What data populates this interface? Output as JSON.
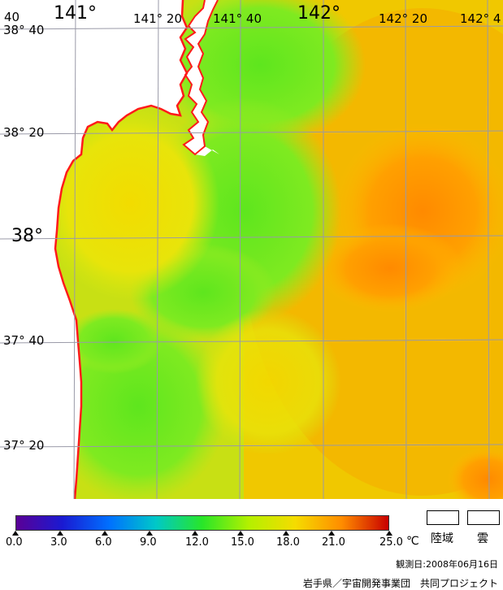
{
  "map": {
    "lon_labels": [
      {
        "text": "141°",
        "key": "lon1"
      },
      {
        "text": "141° 20",
        "key": "lon2"
      },
      {
        "text": "141° 40",
        "key": "lon3"
      },
      {
        "text": "142°",
        "key": "lon4"
      },
      {
        "text": "142° 20",
        "key": "lon5"
      },
      {
        "text": "142° 4",
        "key": "lon6"
      }
    ],
    "lat_labels": [
      {
        "text": "38° 40",
        "key": "lat1"
      },
      {
        "text": "38° 20",
        "key": "lat2"
      },
      {
        "text": "38°",
        "key": "lat3"
      },
      {
        "text": "37° 40",
        "key": "lat4"
      },
      {
        "text": "37° 20",
        "key": "lat5"
      }
    ],
    "corner_label": "40",
    "coastline_color": "#ff1a1a"
  },
  "colorbar": {
    "ticks": [
      "0.0",
      "3.0",
      "6.0",
      "9.0",
      "12.0",
      "15.0",
      "18.0",
      "21.0",
      "25.0"
    ],
    "unit": "℃",
    "colors": [
      "#5a0096",
      "#1a1ad2",
      "#0070ff",
      "#00c8c8",
      "#28e628",
      "#b4f000",
      "#f5dc00",
      "#ff8c00",
      "#c80000"
    ]
  },
  "legend": {
    "land": "陸域",
    "cloud": "雲"
  },
  "footer": {
    "observation_date": "観測日:2008年06月16日",
    "credit": "岩手県／宇宙開発事業団　共同プロジェクト"
  }
}
